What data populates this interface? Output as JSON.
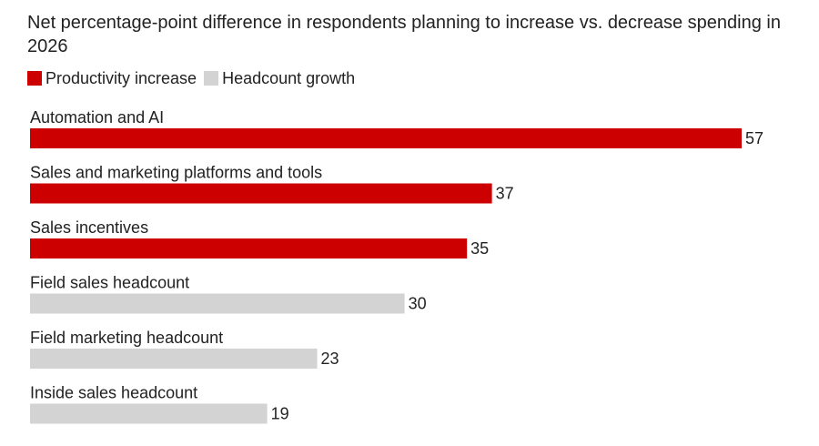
{
  "chart_data": {
    "type": "bar",
    "orientation": "horizontal",
    "title": "Net percentage-point difference in respondents planning to increase vs. decrease spending in 2026",
    "legend": [
      {
        "name": "Productivity increase",
        "color": "#cc0000"
      },
      {
        "name": "Headcount growth",
        "color": "#d3d3d3"
      }
    ],
    "legend_placement": "top-left",
    "categories": [
      "Automation and AI",
      "Sales and marketing platforms and tools",
      "Sales incentives",
      "Field sales headcount",
      "Field marketing headcount",
      "Inside sales headcount"
    ],
    "values": [
      57,
      37,
      35,
      30,
      23,
      19
    ],
    "groups": [
      "Productivity increase",
      "Productivity increase",
      "Productivity increase",
      "Headcount growth",
      "Headcount growth",
      "Headcount growth"
    ],
    "data_labels": [
      "57",
      "37",
      "35",
      "30",
      "23",
      "19"
    ],
    "xlim": [
      0,
      57
    ],
    "grid": false
  }
}
